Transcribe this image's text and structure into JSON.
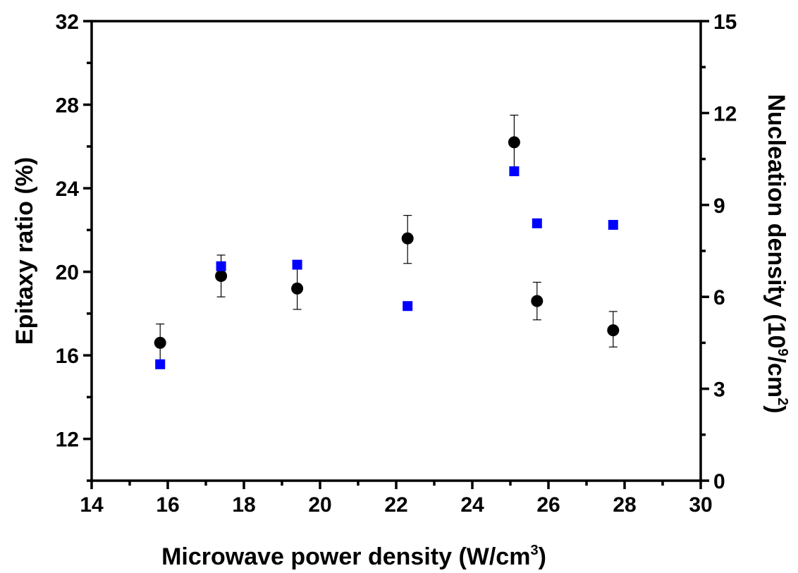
{
  "chart_data": {
    "type": "scatter",
    "title": "",
    "x_axis": {
      "label": "Microwave power density   (W/cm",
      "label_sup": "3",
      "label_end": ")",
      "range": [
        14,
        30
      ],
      "ticks": [
        14,
        16,
        18,
        20,
        22,
        24,
        26,
        28,
        30
      ],
      "tick_labels": [
        "14",
        "16",
        "18",
        "20",
        "22",
        "24",
        "26",
        "28",
        "30"
      ]
    },
    "y_left_axis": {
      "label": "Epitaxy ratio (%)",
      "range": [
        10,
        32
      ],
      "ticks": [
        12,
        16,
        20,
        24,
        28,
        32
      ],
      "tick_labels": [
        "12",
        "16",
        "20",
        "24",
        "28",
        "32"
      ]
    },
    "y_right_axis": {
      "label": "Nucleation density     (10",
      "label_sup1": "9",
      "label_mid": "/cm",
      "label_sup2": "2",
      "label_end": ")",
      "range": [
        0,
        15
      ],
      "ticks": [
        0,
        3,
        6,
        9,
        12,
        15
      ],
      "tick_labels": [
        "0",
        "3",
        "6",
        "9",
        "12",
        "15"
      ]
    },
    "series": [
      {
        "axis": "left",
        "marker": "circle",
        "color": "#000000",
        "points": [
          {
            "x": 15.8,
            "y": 16.6,
            "err_low": 15.7,
            "err_high": 17.5
          },
          {
            "x": 17.4,
            "y": 19.8,
            "err_low": 18.8,
            "err_high": 20.8
          },
          {
            "x": 19.4,
            "y": 19.2,
            "err_low": 18.2,
            "err_high": 20.2
          },
          {
            "x": 22.3,
            "y": 21.6,
            "err_low": 20.4,
            "err_high": 22.7
          },
          {
            "x": 25.1,
            "y": 26.2,
            "err_low": 24.8,
            "err_high": 27.5
          },
          {
            "x": 25.7,
            "y": 18.6,
            "err_low": 17.7,
            "err_high": 19.5
          },
          {
            "x": 27.7,
            "y": 17.2,
            "err_low": 16.4,
            "err_high": 18.1
          }
        ]
      },
      {
        "axis": "right",
        "marker": "square",
        "color": "#0000ff",
        "points": [
          {
            "x": 15.8,
            "y": 3.8
          },
          {
            "x": 17.4,
            "y": 7.0
          },
          {
            "x": 19.4,
            "y": 7.05
          },
          {
            "x": 22.3,
            "y": 5.7
          },
          {
            "x": 25.1,
            "y": 10.1
          },
          {
            "x": 25.7,
            "y": 8.4
          },
          {
            "x": 27.7,
            "y": 8.35
          }
        ]
      }
    ]
  }
}
